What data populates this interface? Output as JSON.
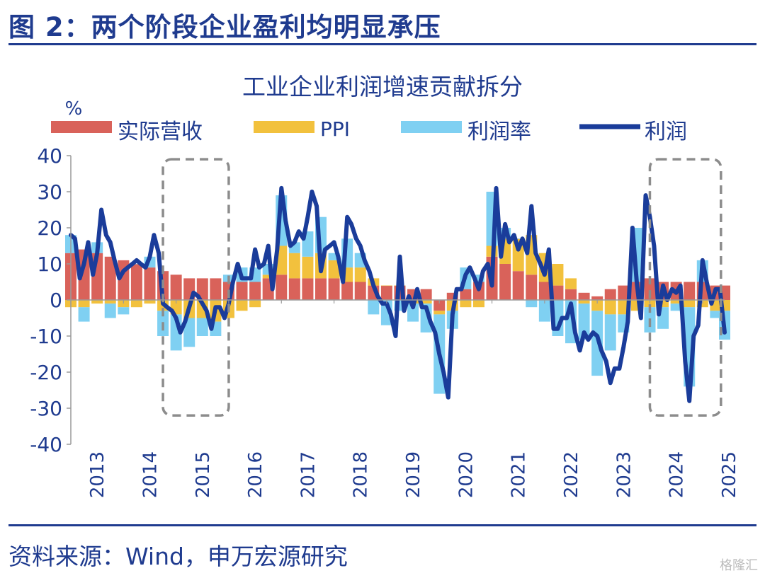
{
  "figure": {
    "title": "图 2：两个阶段企业盈利均明显承压",
    "source": "资料来源：Wind，申万宏源研究",
    "watermark": "格隆汇"
  },
  "colors": {
    "revenue": "#d9625a",
    "ppi": "#f2c13d",
    "margin": "#7fd0f2",
    "profit": "#1a3c9a",
    "text": "#1f3b8f",
    "box": "#8c8c8c"
  },
  "chart_data": {
    "type": "bar",
    "title": "工业企业利润增速贡献拆分",
    "unit": "%",
    "stacked": true,
    "ylim": [
      -40,
      40
    ],
    "yticks": [
      40,
      30,
      20,
      10,
      0,
      -10,
      -20,
      -30,
      -40
    ],
    "x_range": [
      2013.0,
      2025.42
    ],
    "year_ticks": [
      "2013",
      "2014",
      "2015",
      "2016",
      "2017",
      "2018",
      "2019",
      "2020",
      "2021",
      "2022",
      "2023",
      "2024",
      "2025"
    ],
    "legend": [
      "实际营收",
      "PPI",
      "利润率",
      "利润"
    ],
    "grid": false,
    "highlight_boxes": [
      {
        "from": 2014.75,
        "to": 2016.0,
        "y_top": 39,
        "y_bottom": -32
      },
      {
        "from": 2024.0,
        "to": 2025.35,
        "y_top": 39,
        "y_bottom": -32
      }
    ],
    "bar_series": [
      {
        "name": "实际营收",
        "points": [
          [
            2013.0,
            13
          ],
          [
            2013.25,
            14
          ],
          [
            2013.5,
            13
          ],
          [
            2013.75,
            12
          ],
          [
            2014.0,
            11
          ],
          [
            2014.25,
            10
          ],
          [
            2014.5,
            9
          ],
          [
            2014.75,
            8
          ],
          [
            2015.0,
            7
          ],
          [
            2015.25,
            6
          ],
          [
            2015.5,
            6
          ],
          [
            2015.75,
            6
          ],
          [
            2016.0,
            5
          ],
          [
            2016.25,
            5
          ],
          [
            2016.5,
            5
          ],
          [
            2016.75,
            6
          ],
          [
            2017.0,
            7
          ],
          [
            2017.25,
            6
          ],
          [
            2017.5,
            6
          ],
          [
            2017.75,
            6
          ],
          [
            2018.0,
            6
          ],
          [
            2018.25,
            5
          ],
          [
            2018.5,
            5
          ],
          [
            2018.75,
            4
          ],
          [
            2019.0,
            4
          ],
          [
            2019.25,
            4
          ],
          [
            2019.5,
            3
          ],
          [
            2019.75,
            3
          ],
          [
            2020.0,
            -3
          ],
          [
            2020.25,
            2
          ],
          [
            2020.5,
            3
          ],
          [
            2020.75,
            5
          ],
          [
            2021.0,
            12
          ],
          [
            2021.25,
            10
          ],
          [
            2021.5,
            8
          ],
          [
            2021.75,
            7
          ],
          [
            2022.0,
            5
          ],
          [
            2022.25,
            4
          ],
          [
            2022.5,
            3
          ],
          [
            2022.75,
            2
          ],
          [
            2023.0,
            1
          ],
          [
            2023.25,
            3
          ],
          [
            2023.5,
            4
          ],
          [
            2023.75,
            5
          ],
          [
            2024.0,
            6
          ],
          [
            2024.25,
            5
          ],
          [
            2024.5,
            5
          ],
          [
            2024.75,
            5
          ],
          [
            2025.0,
            5
          ],
          [
            2025.25,
            4
          ],
          [
            2025.42,
            4
          ]
        ]
      },
      {
        "name": "PPI",
        "points": [
          [
            2013.0,
            -2
          ],
          [
            2013.25,
            -2
          ],
          [
            2013.5,
            -1
          ],
          [
            2013.75,
            -1
          ],
          [
            2014.0,
            -2
          ],
          [
            2014.25,
            -2
          ],
          [
            2014.5,
            -1
          ],
          [
            2014.75,
            -3
          ],
          [
            2015.0,
            -4
          ],
          [
            2015.25,
            -5
          ],
          [
            2015.5,
            -5
          ],
          [
            2015.75,
            -6
          ],
          [
            2016.0,
            -5
          ],
          [
            2016.25,
            -3
          ],
          [
            2016.5,
            -2
          ],
          [
            2016.75,
            1
          ],
          [
            2017.0,
            8
          ],
          [
            2017.25,
            7
          ],
          [
            2017.5,
            6
          ],
          [
            2017.75,
            7
          ],
          [
            2018.0,
            5
          ],
          [
            2018.25,
            4
          ],
          [
            2018.5,
            4
          ],
          [
            2018.75,
            2
          ],
          [
            2019.0,
            0
          ],
          [
            2019.25,
            0
          ],
          [
            2019.5,
            -1
          ],
          [
            2019.75,
            -1
          ],
          [
            2020.0,
            -1
          ],
          [
            2020.25,
            -3
          ],
          [
            2020.5,
            -2
          ],
          [
            2020.75,
            -2
          ],
          [
            2021.0,
            3
          ],
          [
            2021.25,
            7
          ],
          [
            2021.5,
            9
          ],
          [
            2021.75,
            11
          ],
          [
            2022.0,
            8
          ],
          [
            2022.25,
            6
          ],
          [
            2022.5,
            3
          ],
          [
            2022.75,
            -1
          ],
          [
            2023.0,
            -3
          ],
          [
            2023.25,
            -4
          ],
          [
            2023.5,
            -4
          ],
          [
            2023.75,
            -3
          ],
          [
            2024.0,
            -2
          ],
          [
            2024.25,
            -2
          ],
          [
            2024.5,
            -1
          ],
          [
            2024.75,
            -2
          ],
          [
            2025.0,
            -2
          ],
          [
            2025.25,
            -3
          ],
          [
            2025.42,
            -3
          ]
        ]
      },
      {
        "name": "利润率",
        "points": [
          [
            2013.0,
            5
          ],
          [
            2013.25,
            -4
          ],
          [
            2013.5,
            3
          ],
          [
            2013.75,
            -4
          ],
          [
            2014.0,
            -2
          ],
          [
            2014.25,
            0
          ],
          [
            2014.5,
            3
          ],
          [
            2014.75,
            -7
          ],
          [
            2015.0,
            -10
          ],
          [
            2015.25,
            -8
          ],
          [
            2015.5,
            -5
          ],
          [
            2015.75,
            -4
          ],
          [
            2016.0,
            2
          ],
          [
            2016.25,
            4
          ],
          [
            2016.5,
            4
          ],
          [
            2016.75,
            3
          ],
          [
            2017.0,
            14
          ],
          [
            2017.25,
            3
          ],
          [
            2017.5,
            7
          ],
          [
            2017.75,
            10
          ],
          [
            2018.0,
            2
          ],
          [
            2018.25,
            8
          ],
          [
            2018.5,
            4
          ],
          [
            2018.75,
            -4
          ],
          [
            2019.0,
            -7
          ],
          [
            2019.25,
            -3
          ],
          [
            2019.5,
            -5
          ],
          [
            2019.75,
            -8
          ],
          [
            2020.0,
            -22
          ],
          [
            2020.25,
            -5
          ],
          [
            2020.5,
            6
          ],
          [
            2020.75,
            2
          ],
          [
            2021.0,
            15
          ],
          [
            2021.25,
            3
          ],
          [
            2021.5,
            0
          ],
          [
            2021.75,
            -2
          ],
          [
            2022.0,
            -6
          ],
          [
            2022.25,
            -10
          ],
          [
            2022.5,
            -12
          ],
          [
            2022.75,
            -10
          ],
          [
            2023.0,
            -18
          ],
          [
            2023.25,
            -10
          ],
          [
            2023.5,
            -5
          ],
          [
            2023.75,
            15
          ],
          [
            2024.0,
            -7
          ],
          [
            2024.25,
            -6
          ],
          [
            2024.5,
            -2
          ],
          [
            2024.75,
            -22
          ],
          [
            2025.0,
            6
          ],
          [
            2025.25,
            -2
          ],
          [
            2025.42,
            -8
          ]
        ]
      }
    ],
    "line_series": {
      "name": "利润",
      "points": [
        [
          2013.0,
          18
        ],
        [
          2013.08,
          17
        ],
        [
          2013.17,
          6
        ],
        [
          2013.25,
          10
        ],
        [
          2013.33,
          16
        ],
        [
          2013.42,
          7
        ],
        [
          2013.5,
          13
        ],
        [
          2013.58,
          25
        ],
        [
          2013.67,
          18
        ],
        [
          2013.75,
          16
        ],
        [
          2013.83,
          11
        ],
        [
          2013.92,
          6
        ],
        [
          2014.0,
          8
        ],
        [
          2014.08,
          9
        ],
        [
          2014.17,
          10
        ],
        [
          2014.25,
          11
        ],
        [
          2014.33,
          10
        ],
        [
          2014.42,
          9
        ],
        [
          2014.5,
          12
        ],
        [
          2014.58,
          18
        ],
        [
          2014.67,
          13
        ],
        [
          2014.75,
          -1
        ],
        [
          2014.83,
          -2
        ],
        [
          2014.92,
          -3
        ],
        [
          2015.0,
          -5
        ],
        [
          2015.08,
          -9
        ],
        [
          2015.17,
          -6
        ],
        [
          2015.25,
          -2
        ],
        [
          2015.33,
          2
        ],
        [
          2015.42,
          1
        ],
        [
          2015.5,
          -1
        ],
        [
          2015.58,
          -3
        ],
        [
          2015.67,
          -8
        ],
        [
          2015.75,
          -2
        ],
        [
          2015.83,
          -2
        ],
        [
          2015.92,
          -5
        ],
        [
          2016.0,
          -1
        ],
        [
          2016.08,
          5
        ],
        [
          2016.17,
          10
        ],
        [
          2016.25,
          6
        ],
        [
          2016.33,
          6
        ],
        [
          2016.42,
          6
        ],
        [
          2016.5,
          14
        ],
        [
          2016.58,
          9
        ],
        [
          2016.67,
          10
        ],
        [
          2016.75,
          15
        ],
        [
          2016.83,
          3
        ],
        [
          2016.92,
          14
        ],
        [
          2017.0,
          31
        ],
        [
          2017.08,
          22
        ],
        [
          2017.17,
          15
        ],
        [
          2017.25,
          16
        ],
        [
          2017.33,
          19
        ],
        [
          2017.42,
          17
        ],
        [
          2017.5,
          23
        ],
        [
          2017.58,
          30
        ],
        [
          2017.67,
          26
        ],
        [
          2017.75,
          8
        ],
        [
          2017.83,
          14
        ],
        [
          2017.92,
          15
        ],
        [
          2018.0,
          16
        ],
        [
          2018.08,
          12
        ],
        [
          2018.17,
          5
        ],
        [
          2018.25,
          23
        ],
        [
          2018.33,
          21
        ],
        [
          2018.42,
          17
        ],
        [
          2018.5,
          15
        ],
        [
          2018.58,
          11
        ],
        [
          2018.67,
          8
        ],
        [
          2018.75,
          4
        ],
        [
          2018.83,
          1
        ],
        [
          2018.92,
          -1
        ],
        [
          2019.0,
          -1
        ],
        [
          2019.08,
          -4
        ],
        [
          2019.17,
          -10
        ],
        [
          2019.25,
          12
        ],
        [
          2019.33,
          -3
        ],
        [
          2019.42,
          1
        ],
        [
          2019.5,
          -2
        ],
        [
          2019.58,
          3
        ],
        [
          2019.67,
          -2
        ],
        [
          2019.75,
          -2
        ],
        [
          2019.83,
          -6
        ],
        [
          2019.92,
          -9
        ],
        [
          2020.0,
          -15
        ],
        [
          2020.08,
          -20
        ],
        [
          2020.17,
          -27
        ],
        [
          2020.25,
          -4
        ],
        [
          2020.33,
          3
        ],
        [
          2020.42,
          3
        ],
        [
          2020.5,
          7
        ],
        [
          2020.58,
          9
        ],
        [
          2020.67,
          6
        ],
        [
          2020.75,
          3
        ],
        [
          2020.83,
          8
        ],
        [
          2020.92,
          10
        ],
        [
          2021.0,
          4
        ],
        [
          2021.08,
          31
        ],
        [
          2021.17,
          12
        ],
        [
          2021.25,
          21
        ],
        [
          2021.33,
          16
        ],
        [
          2021.42,
          18
        ],
        [
          2021.5,
          14
        ],
        [
          2021.58,
          17
        ],
        [
          2021.67,
          13
        ],
        [
          2021.75,
          26
        ],
        [
          2021.83,
          13
        ],
        [
          2021.92,
          10
        ],
        [
          2022.0,
          7
        ],
        [
          2022.08,
          14
        ],
        [
          2022.17,
          -8
        ],
        [
          2022.25,
          -8
        ],
        [
          2022.33,
          -5
        ],
        [
          2022.42,
          -5
        ],
        [
          2022.5,
          -1
        ],
        [
          2022.58,
          -9
        ],
        [
          2022.67,
          -14
        ],
        [
          2022.75,
          -9
        ],
        [
          2022.83,
          -11
        ],
        [
          2022.92,
          -9
        ],
        [
          2023.0,
          -10
        ],
        [
          2023.08,
          -14
        ],
        [
          2023.17,
          -17
        ],
        [
          2023.25,
          -23
        ],
        [
          2023.33,
          -19
        ],
        [
          2023.42,
          -19
        ],
        [
          2023.5,
          -13
        ],
        [
          2023.58,
          -6
        ],
        [
          2023.67,
          20
        ],
        [
          2023.75,
          5
        ],
        [
          2023.83,
          -5
        ],
        [
          2023.92,
          29
        ],
        [
          2024.0,
          23
        ],
        [
          2024.08,
          15
        ],
        [
          2024.17,
          -4
        ],
        [
          2024.25,
          4
        ],
        [
          2024.33,
          0
        ],
        [
          2024.42,
          3
        ],
        [
          2024.5,
          2
        ],
        [
          2024.58,
          4
        ],
        [
          2024.67,
          -17
        ],
        [
          2024.75,
          -28
        ],
        [
          2024.83,
          -10
        ],
        [
          2024.92,
          -7
        ],
        [
          2025.0,
          11
        ],
        [
          2025.08,
          5
        ],
        [
          2025.17,
          -1
        ],
        [
          2025.25,
          3
        ],
        [
          2025.33,
          3
        ],
        [
          2025.42,
          -9
        ]
      ]
    }
  }
}
